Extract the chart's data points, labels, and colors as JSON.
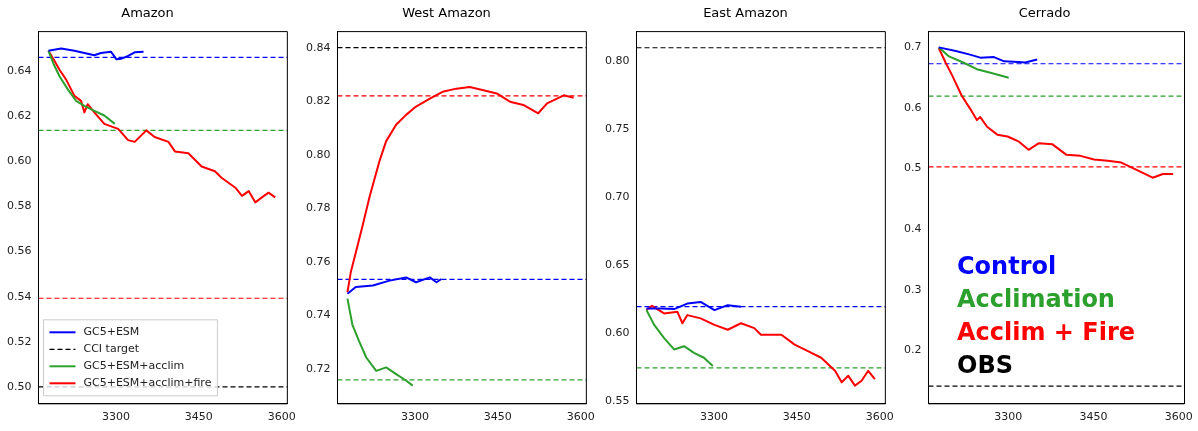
{
  "chart_data": [
    {
      "type": "line",
      "title": "Amazon",
      "xlim": [
        3160,
        3610
      ],
      "xticks": [
        3300,
        3450,
        3600
      ],
      "ylim": [
        0.4925,
        0.6575
      ],
      "yticks": [
        {
          "value": 0.5,
          "label": "0.50"
        },
        0.52,
        0.54,
        0.56,
        0.58,
        {
          "value": 0.6,
          "label": "0.60"
        },
        0.62,
        0.64
      ],
      "grid": false,
      "legend": "bottom left",
      "line_style": "solid",
      "marker": "none",
      "series": [
        {
          "name": "GC5+ESM",
          "color": "#0000ff",
          "x": [
            3178,
            3201,
            3225,
            3243,
            3261,
            3273,
            3291,
            3301,
            3310,
            3322,
            3334,
            3350
          ],
          "values": [
            0.649,
            0.65,
            0.649,
            0.648,
            0.647,
            0.648,
            0.6486,
            0.6452,
            0.6455,
            0.6467,
            0.6483,
            0.6486
          ]
        },
        {
          "name": "GC5+ESM+acclim",
          "color": "#2ca02c",
          "x": [
            3178,
            3188,
            3198,
            3213,
            3228,
            3243,
            3261,
            3279,
            3298
          ],
          "values": [
            0.649,
            0.6428,
            0.6377,
            0.6319,
            0.6268,
            0.6246,
            0.6224,
            0.6203,
            0.6166
          ]
        },
        {
          "name": "GC5+ESM+acclim+fire",
          "color": "#ff0000",
          "x": [
            3178,
            3188,
            3198,
            3210,
            3225,
            3237,
            3243,
            3249,
            3261,
            3279,
            3304,
            3322,
            3334,
            3355,
            3370,
            3395,
            3407,
            3431,
            3455,
            3479,
            3491,
            3516,
            3528,
            3540,
            3552,
            3564,
            3576,
            3588
          ],
          "values": [
            0.649,
            0.6449,
            0.6406,
            0.6362,
            0.629,
            0.6268,
            0.6217,
            0.6253,
            0.6217,
            0.6166,
            0.6144,
            0.6094,
            0.6086,
            0.6137,
            0.6108,
            0.6086,
            0.6043,
            0.6036,
            0.5977,
            0.5956,
            0.5927,
            0.5883,
            0.5847,
            0.5868,
            0.5818,
            0.584,
            0.5861,
            0.584
          ]
        }
      ],
      "ref_lines": [
        {
          "axis": "y",
          "value": 0.6461,
          "color": "#0000ff",
          "line_style": "dashed"
        },
        {
          "axis": "y",
          "value": 0.5,
          "color": "#000000",
          "line_style": "dashed",
          "label": "CCI target"
        },
        {
          "axis": "y",
          "value": 0.6137,
          "color": "#2ca02c",
          "line_style": "dashed"
        },
        {
          "axis": "y",
          "value": 0.5393,
          "color": "#ff0000",
          "line_style": "dashed"
        }
      ]
    },
    {
      "type": "line",
      "title": "West Amazon",
      "xlim": [
        3160,
        3610
      ],
      "xticks": [
        3300,
        3450,
        3600
      ],
      "ylim": [
        0.707,
        0.846
      ],
      "yticks": [
        0.72,
        0.74,
        0.76,
        0.78,
        {
          "value": 0.8,
          "label": "0.80"
        },
        0.82,
        0.84
      ],
      "grid": false,
      "line_style": "solid",
      "marker": "none",
      "series": [
        {
          "color": "#0000ff",
          "x": [
            3178,
            3193,
            3224,
            3254,
            3284,
            3302,
            3327,
            3339,
            3348
          ],
          "values": [
            0.7481,
            0.7506,
            0.7512,
            0.753,
            0.7542,
            0.7524,
            0.7542,
            0.7524,
            0.7536
          ]
        },
        {
          "color": "#2ca02c",
          "x": [
            3178,
            3187,
            3199,
            3212,
            3230,
            3248,
            3266,
            3284,
            3296
          ],
          "values": [
            0.7463,
            0.7365,
            0.7304,
            0.7243,
            0.7193,
            0.7206,
            0.7181,
            0.7157,
            0.7138
          ]
        },
        {
          "color": "#ff0000",
          "x": [
            3178,
            3184,
            3193,
            3205,
            3218,
            3236,
            3248,
            3266,
            3284,
            3302,
            3327,
            3350,
            3375,
            3399,
            3424,
            3448,
            3472,
            3496,
            3523,
            3539,
            3557,
            3569,
            3587
          ],
          "values": [
            0.7487,
            0.7561,
            0.7634,
            0.7732,
            0.7843,
            0.7977,
            0.8051,
            0.8112,
            0.8149,
            0.818,
            0.821,
            0.8235,
            0.8247,
            0.8253,
            0.8241,
            0.8229,
            0.8198,
            0.8186,
            0.8155,
            0.8192,
            0.821,
            0.8222,
            0.8213
          ]
        }
      ],
      "ref_lines": [
        {
          "axis": "y",
          "value": 0.7535,
          "color": "#0000ff",
          "line_style": "dashed"
        },
        {
          "axis": "y",
          "value": 0.84,
          "color": "#000000",
          "line_style": "dashed"
        },
        {
          "axis": "y",
          "value": 0.7159,
          "color": "#2ca02c",
          "line_style": "dashed"
        },
        {
          "axis": "y",
          "value": 0.822,
          "color": "#ff0000",
          "line_style": "dashed"
        }
      ]
    },
    {
      "type": "line",
      "title": "East Amazon",
      "xlim": [
        3160,
        3610
      ],
      "xticks": [
        3300,
        3450,
        3600
      ],
      "ylim": [
        0.548,
        0.822
      ],
      "yticks": [
        0.55,
        {
          "value": 0.6,
          "label": "0.60"
        },
        0.65,
        {
          "value": 0.7,
          "label": "0.70"
        },
        0.75,
        {
          "value": 0.8,
          "label": "0.80"
        }
      ],
      "grid": false,
      "line_style": "solid",
      "marker": "none",
      "series": [
        {
          "color": "#0000ff",
          "x": [
            3178,
            3204,
            3228,
            3252,
            3276,
            3301,
            3325,
            3349
          ],
          "values": [
            0.6182,
            0.6182,
            0.6177,
            0.6218,
            0.623,
            0.617,
            0.6206,
            0.6194
          ]
        },
        {
          "color": "#2ca02c",
          "x": [
            3178,
            3192,
            3210,
            3228,
            3246,
            3264,
            3282,
            3298
          ],
          "values": [
            0.617,
            0.6061,
            0.5964,
            0.588,
            0.5904,
            0.5855,
            0.5819,
            0.5759
          ]
        },
        {
          "color": "#ff0000",
          "x": [
            3178,
            3188,
            3210,
            3234,
            3243,
            3252,
            3276,
            3301,
            3325,
            3349,
            3373,
            3385,
            3422,
            3446,
            3470,
            3494,
            3519,
            3531,
            3543,
            3555,
            3567,
            3579,
            3591
          ],
          "values": [
            0.617,
            0.6201,
            0.6145,
            0.6157,
            0.6073,
            0.6133,
            0.6109,
            0.6061,
            0.6025,
            0.6073,
            0.6037,
            0.5988,
            0.5988,
            0.5916,
            0.5868,
            0.5819,
            0.5723,
            0.5638,
            0.5686,
            0.5614,
            0.565,
            0.5723,
            0.5662
          ]
        }
      ],
      "ref_lines": [
        {
          "axis": "y",
          "value": 0.6196,
          "color": "#0000ff",
          "line_style": "dashed"
        },
        {
          "axis": "y",
          "value": 0.8101,
          "color": "#000000",
          "line_style": "dashed"
        },
        {
          "axis": "y",
          "value": 0.5744,
          "color": "#2ca02c",
          "line_style": "dashed"
        }
      ]
    },
    {
      "type": "line",
      "title": "Cerrado",
      "xlim": [
        3160,
        3610
      ],
      "xticks": [
        3300,
        3450,
        3600
      ],
      "ylim": [
        0.112,
        0.726
      ],
      "yticks": [
        0.2,
        0.3,
        0.4,
        0.5,
        0.6,
        0.7
      ],
      "grid": false,
      "line_style": "solid",
      "marker": "none",
      "series": [
        {
          "color": "#0000ff",
          "x": [
            3178,
            3208,
            3233,
            3251,
            3275,
            3293,
            3318,
            3330,
            3351
          ],
          "values": [
            0.7,
            0.694,
            0.688,
            0.683,
            0.684,
            0.677,
            0.676,
            0.675,
            0.68
          ]
        },
        {
          "color": "#2ca02c",
          "x": [
            3178,
            3196,
            3221,
            3245,
            3269,
            3301
          ],
          "values": [
            0.7,
            0.685,
            0.675,
            0.664,
            0.658,
            0.65
          ]
        },
        {
          "color": "#ff0000",
          "x": [
            3178,
            3190,
            3202,
            3218,
            3233,
            3245,
            3251,
            3263,
            3281,
            3299,
            3318,
            3336,
            3354,
            3378,
            3402,
            3427,
            3451,
            3475,
            3499,
            3523,
            3554,
            3572,
            3590
          ],
          "values": [
            0.699,
            0.675,
            0.653,
            0.621,
            0.599,
            0.58,
            0.585,
            0.569,
            0.556,
            0.553,
            0.545,
            0.531,
            0.542,
            0.54,
            0.523,
            0.521,
            0.515,
            0.513,
            0.51,
            0.499,
            0.485,
            0.491,
            0.491
          ]
        }
      ],
      "ref_lines": [
        {
          "axis": "y",
          "value": 0.673,
          "color": "#0000ff",
          "line_style": "dashed"
        },
        {
          "axis": "y",
          "value": 0.141,
          "color": "#000000",
          "line_style": "dashed"
        },
        {
          "axis": "y",
          "value": 0.6195,
          "color": "#2ca02c",
          "line_style": "dashed"
        },
        {
          "axis": "y",
          "value": 0.5027,
          "color": "#ff0000",
          "line_style": "dashed"
        }
      ],
      "annotations": [
        "Control",
        "Acclimation",
        "Acclim + Fire",
        "OBS"
      ]
    }
  ]
}
